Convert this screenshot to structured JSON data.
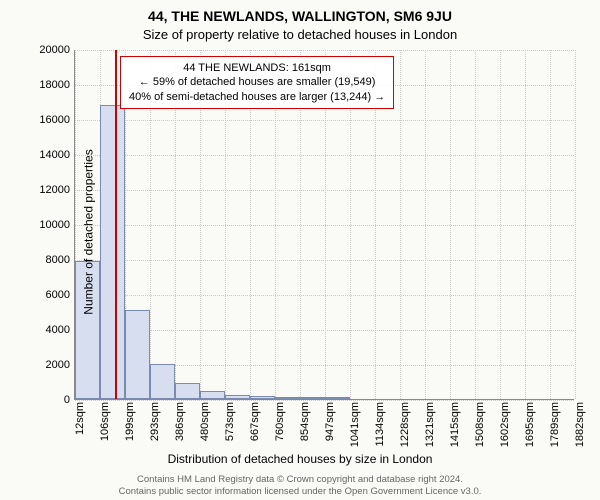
{
  "title_main": "44, THE NEWLANDS, WALLINGTON, SM6 9JU",
  "title_sub": "Size of property relative to detached houses in London",
  "ylabel": "Number of detached properties",
  "xlabel": "Distribution of detached houses by size in London",
  "chart": {
    "type": "histogram",
    "background_color": "#fafaf7",
    "grid_color": "#c8c8c8",
    "axis_color": "#888888",
    "bar_fill": "#d6deef",
    "bar_border": "#7a8ab0",
    "marker_color": "#d00000",
    "marker_x_sqm": 161,
    "ylim": [
      0,
      20000
    ],
    "ytick_step": 2000,
    "yticks": [
      0,
      2000,
      4000,
      6000,
      8000,
      10000,
      12000,
      14000,
      16000,
      18000,
      20000
    ],
    "x_range_sqm": [
      12,
      1882
    ],
    "xticks_sqm": [
      12,
      106,
      199,
      293,
      386,
      480,
      573,
      667,
      760,
      854,
      947,
      1041,
      1134,
      1228,
      1321,
      1415,
      1508,
      1602,
      1695,
      1789,
      1882
    ],
    "xtick_labels": [
      "12sqm",
      "106sqm",
      "199sqm",
      "293sqm",
      "386sqm",
      "480sqm",
      "573sqm",
      "667sqm",
      "760sqm",
      "854sqm",
      "947sqm",
      "1041sqm",
      "1134sqm",
      "1228sqm",
      "1321sqm",
      "1415sqm",
      "1508sqm",
      "1602sqm",
      "1695sqm",
      "1789sqm",
      "1882sqm"
    ],
    "bars": [
      {
        "x0": 12,
        "x1": 106,
        "count": 7900
      },
      {
        "x0": 106,
        "x1": 199,
        "count": 16800
      },
      {
        "x0": 199,
        "x1": 293,
        "count": 5100
      },
      {
        "x0": 293,
        "x1": 386,
        "count": 2000
      },
      {
        "x0": 386,
        "x1": 480,
        "count": 900
      },
      {
        "x0": 480,
        "x1": 573,
        "count": 450
      },
      {
        "x0": 573,
        "x1": 667,
        "count": 250
      },
      {
        "x0": 667,
        "x1": 760,
        "count": 150
      },
      {
        "x0": 760,
        "x1": 854,
        "count": 100
      },
      {
        "x0": 854,
        "x1": 947,
        "count": 70
      },
      {
        "x0": 947,
        "x1": 1041,
        "count": 50
      }
    ]
  },
  "info_box": {
    "line1": "44 THE NEWLANDS: 161sqm",
    "line2": "← 59% of detached houses are smaller (19,549)",
    "line3": "40% of semi-detached houses are larger (13,244) →",
    "border_color": "#d00000",
    "fontsize": 11
  },
  "footer": {
    "line1": "Contains HM Land Registry data © Crown copyright and database right 2024.",
    "line2": "Contains public sector information licensed under the Open Government Licence v3.0.",
    "color": "#666666",
    "fontsize": 9.5
  }
}
